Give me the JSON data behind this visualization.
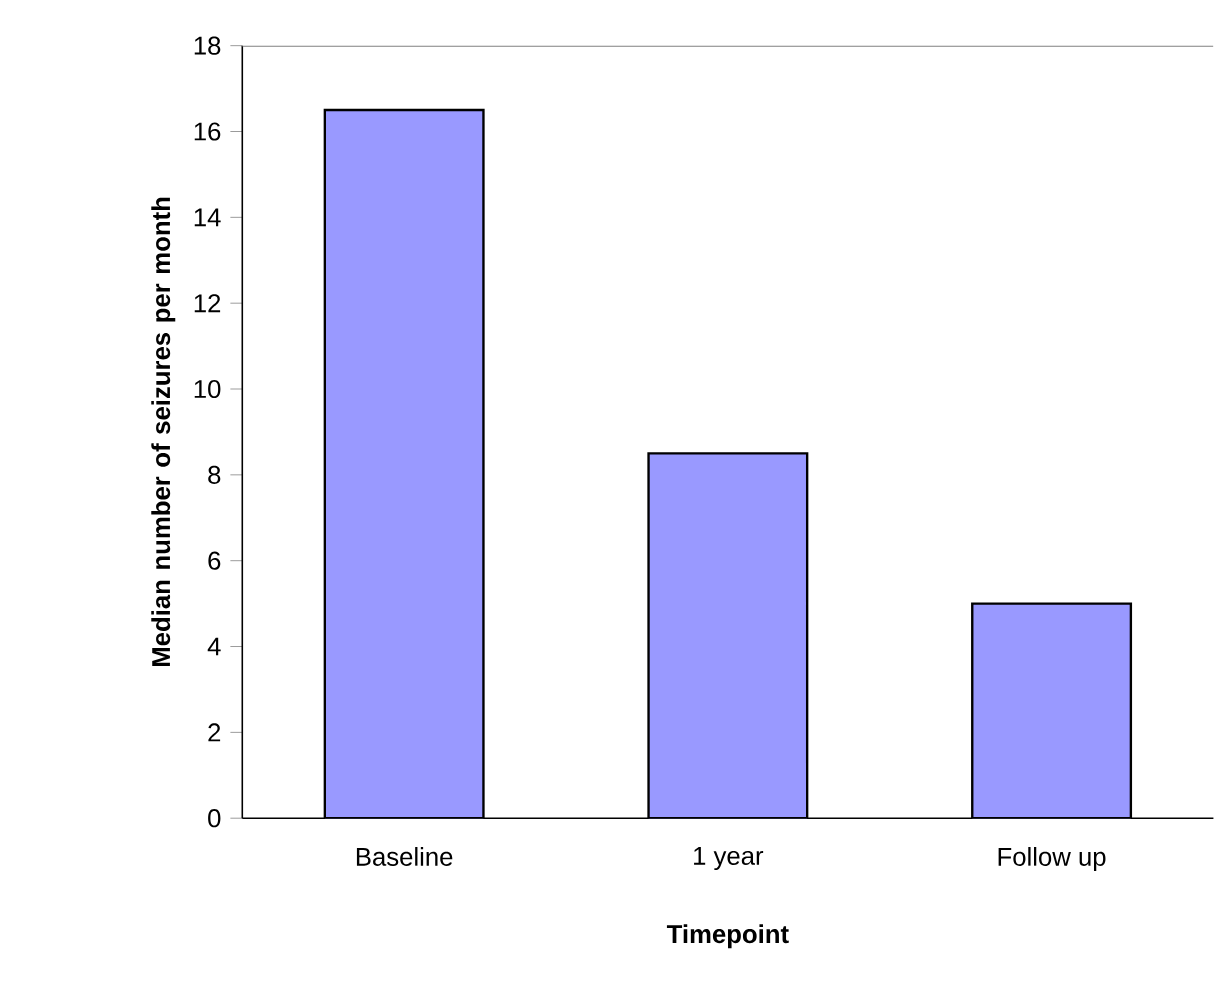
{
  "chart_data": {
    "type": "bar",
    "xlabel": "Timepoint",
    "ylabel": "Median number of seizures per month",
    "categories": [
      "Baseline",
      "1 year",
      "Follow up"
    ],
    "values": [
      16.5,
      8.5,
      5
    ],
    "color": "#9999ff",
    "ylim": [
      0,
      18
    ],
    "yticks": [
      0,
      2,
      4,
      6,
      8,
      10,
      12,
      14,
      16,
      18
    ]
  }
}
